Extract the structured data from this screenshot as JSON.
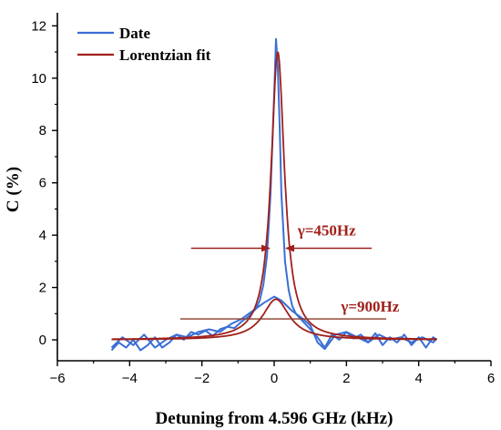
{
  "chart_data": {
    "type": "line",
    "xlabel": "Detuning from 4.596 GHz (kHz)",
    "ylabel": "C (%)",
    "xlim": [
      -6,
      6
    ],
    "ylim": [
      -0.8,
      12.5
    ],
    "xticks": [
      -6,
      -4,
      -2,
      0,
      2,
      4,
      6
    ],
    "yticks": [
      0,
      2,
      4,
      6,
      8,
      10,
      12
    ],
    "grid": false,
    "legend_position": "top-left",
    "series": [
      {
        "name": "Date",
        "color": "#3a6fd6",
        "curves": [
          {
            "x": [
              -4.5,
              -4.3,
              -4.1,
              -3.9,
              -3.7,
              -3.5,
              -3.3,
              -3.1,
              -2.9,
              -2.7,
              -2.5,
              -2.3,
              -2.1,
              -1.9,
              -1.7,
              -1.5,
              -1.3,
              -1.1,
              -0.9,
              -0.7,
              -0.5,
              -0.4,
              -0.3,
              -0.2,
              -0.1,
              0.0,
              0.05,
              0.1,
              0.15,
              0.2,
              0.3,
              0.4,
              0.5,
              0.6,
              0.8,
              1.0,
              1.2,
              1.4,
              1.6,
              1.8,
              2.0,
              2.2,
              2.4,
              2.6,
              2.8,
              3.0,
              3.2,
              3.4,
              3.6,
              3.8,
              4.0,
              4.2,
              4.4,
              4.5
            ],
            "y": [
              -0.4,
              -0.1,
              -0.3,
              0.0,
              -0.4,
              -0.2,
              0.1,
              -0.3,
              -0.1,
              0.2,
              0.0,
              0.3,
              0.2,
              0.35,
              0.15,
              0.4,
              0.5,
              0.45,
              0.7,
              0.9,
              1.2,
              1.5,
              2.1,
              3.2,
              5.6,
              9.4,
              11.5,
              10.4,
              8.2,
              5.6,
              3.0,
              1.9,
              1.3,
              1.0,
              0.7,
              0.4,
              0.1,
              -0.3,
              0.2,
              0.0,
              0.3,
              0.05,
              0.2,
              -0.1,
              0.25,
              -0.2,
              0.1,
              -0.1,
              0.2,
              -0.2,
              0.1,
              -0.3,
              0.1,
              0.0
            ]
          },
          {
            "x": [
              -4.5,
              -4.2,
              -3.9,
              -3.6,
              -3.3,
              -3.0,
              -2.7,
              -2.4,
              -2.1,
              -1.8,
              -1.5,
              -1.2,
              -0.9,
              -0.6,
              -0.3,
              0.0,
              0.2,
              0.5,
              0.8,
              1.0,
              1.2,
              1.4,
              1.7,
              2.0,
              2.3,
              2.6,
              2.9,
              3.2,
              3.5,
              3.8,
              4.1,
              4.4,
              4.5
            ],
            "y": [
              -0.3,
              0.1,
              -0.2,
              0.2,
              -0.3,
              0.0,
              0.2,
              0.1,
              0.3,
              0.4,
              0.3,
              0.6,
              0.8,
              1.1,
              1.4,
              1.65,
              1.5,
              1.1,
              0.8,
              0.55,
              -0.1,
              -0.35,
              0.2,
              0.3,
              0.1,
              -0.1,
              0.2,
              0.0,
              0.1,
              -0.1,
              0.1,
              -0.1,
              0.05
            ]
          }
        ]
      },
      {
        "name": "Lorentzian fit",
        "color": "#a0201b",
        "curves": [
          {
            "form": "lorentzian",
            "center": 0.1,
            "fwhm": 0.45,
            "amplitude": 11.0,
            "offset": 0.0,
            "xrange": [
              -4.5,
              4.5
            ]
          },
          {
            "form": "lorentzian",
            "center": 0.05,
            "fwhm": 0.9,
            "amplitude": 1.55,
            "offset": 0.0,
            "xrange": [
              -4.5,
              4.5
            ]
          }
        ]
      }
    ],
    "annotations": [
      {
        "text": "γ=450Hz",
        "arrows_x": [
          -2.3,
          2.7
        ],
        "inner_x": [
          -0.13,
          0.33
        ],
        "y": 3.5
      },
      {
        "text": "γ=900Hz",
        "hline_x": [
          -2.6,
          3.1
        ],
        "y": 0.8
      }
    ]
  }
}
